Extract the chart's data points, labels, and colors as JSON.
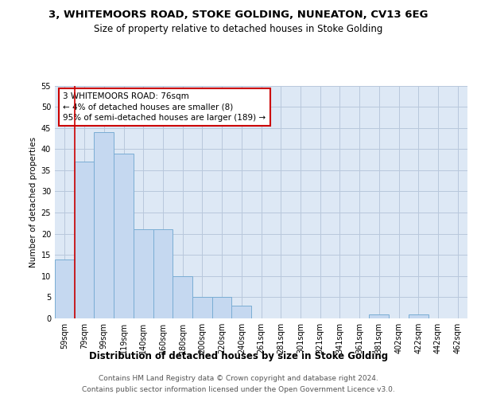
{
  "title1": "3, WHITEMOORS ROAD, STOKE GOLDING, NUNEATON, CV13 6EG",
  "title2": "Size of property relative to detached houses in Stoke Golding",
  "xlabel": "Distribution of detached houses by size in Stoke Golding",
  "ylabel": "Number of detached properties",
  "categories": [
    "59sqm",
    "79sqm",
    "99sqm",
    "119sqm",
    "140sqm",
    "160sqm",
    "180sqm",
    "200sqm",
    "220sqm",
    "240sqm",
    "261sqm",
    "281sqm",
    "301sqm",
    "321sqm",
    "341sqm",
    "361sqm",
    "381sqm",
    "402sqm",
    "422sqm",
    "442sqm",
    "462sqm"
  ],
  "values": [
    14,
    37,
    44,
    39,
    21,
    21,
    10,
    5,
    5,
    3,
    0,
    0,
    0,
    0,
    0,
    0,
    1,
    0,
    1,
    0,
    0
  ],
  "bar_color": "#c5d8f0",
  "bar_edge_color": "#7aadd4",
  "highlight_color": "#cc0000",
  "annotation_text": "3 WHITEMOORS ROAD: 76sqm\n← 4% of detached houses are smaller (8)\n95% of semi-detached houses are larger (189) →",
  "annotation_box_color": "#ffffff",
  "annotation_box_edge": "#cc0000",
  "footer1": "Contains HM Land Registry data © Crown copyright and database right 2024.",
  "footer2": "Contains public sector information licensed under the Open Government Licence v3.0.",
  "ylim": [
    0,
    55
  ],
  "yticks": [
    0,
    5,
    10,
    15,
    20,
    25,
    30,
    35,
    40,
    45,
    50,
    55
  ],
  "bg_color": "#ffffff",
  "plot_bg_color": "#dde8f5",
  "grid_color": "#b8c8dc",
  "title1_fontsize": 9.5,
  "title2_fontsize": 8.5,
  "xlabel_fontsize": 8.5,
  "ylabel_fontsize": 7.5,
  "tick_fontsize": 7,
  "annotation_fontsize": 7.5,
  "footer_fontsize": 6.5
}
